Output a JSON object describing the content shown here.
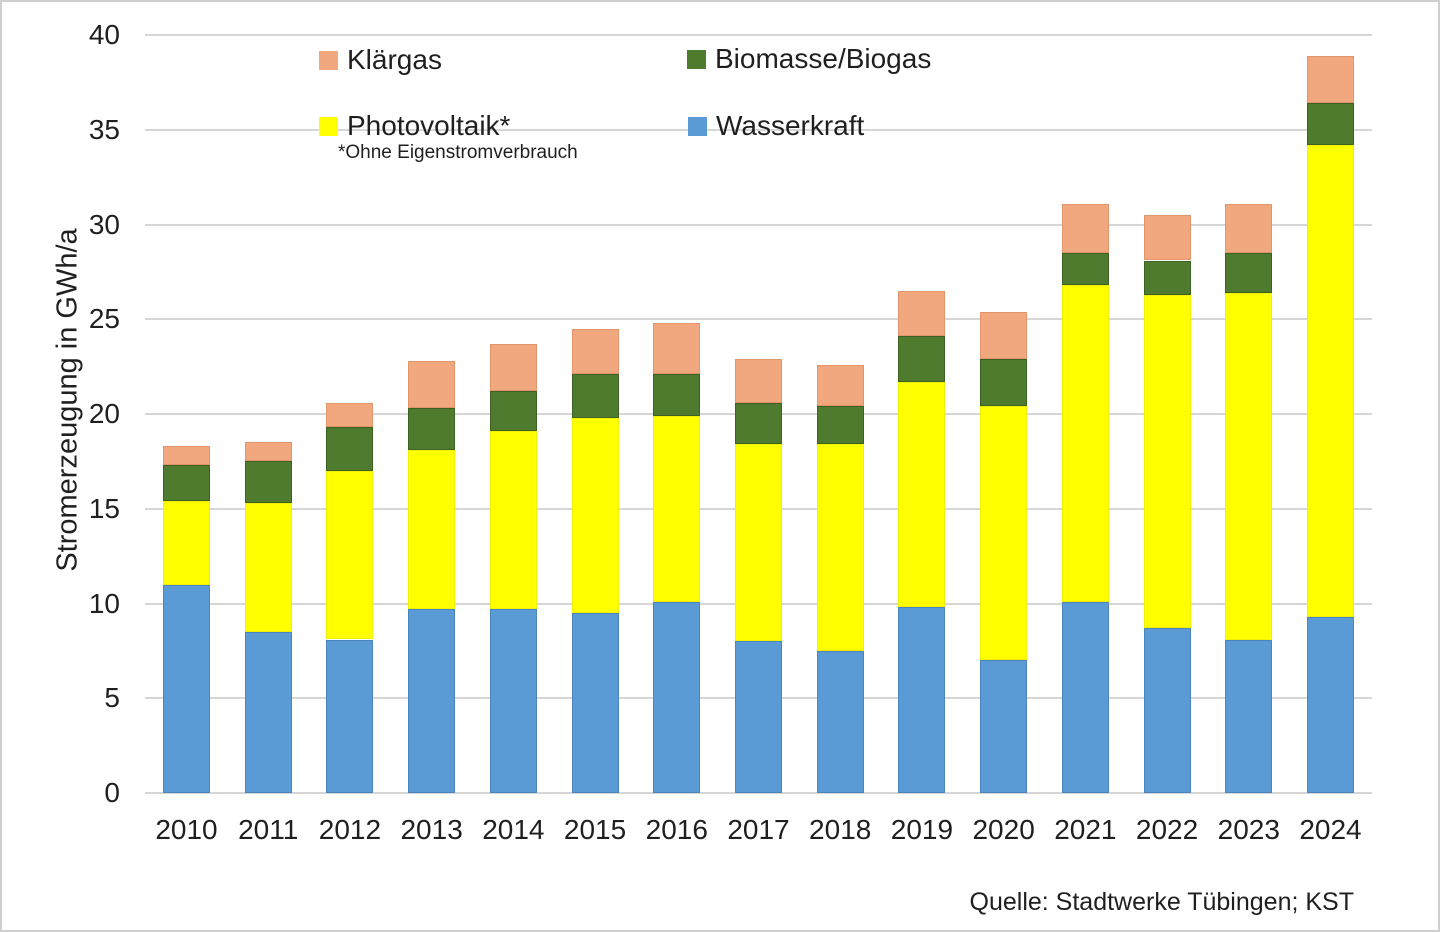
{
  "chart_data": {
    "type": "bar",
    "stacked": true,
    "ylabel": "Stromerzeugung in GWh/a",
    "xlabel": "",
    "ylim": [
      0,
      40
    ],
    "yticks": [
      0,
      5,
      10,
      15,
      20,
      25,
      30,
      35,
      40
    ],
    "grid": true,
    "categories": [
      "2010",
      "2011",
      "2012",
      "2013",
      "2014",
      "2015",
      "2016",
      "2017",
      "2018",
      "2019",
      "2020",
      "2021",
      "2022",
      "2023",
      "2024"
    ],
    "series": [
      {
        "name": "Wasserkraft",
        "color": "#5B9BD5",
        "border": "#4a85be",
        "values": [
          11.0,
          8.5,
          8.1,
          9.7,
          9.7,
          9.5,
          10.1,
          8.0,
          7.5,
          9.8,
          7.0,
          10.1,
          8.7,
          8.1,
          9.3
        ]
      },
      {
        "name": "Photovoltaik*",
        "color": "#FFFF00",
        "border": "#f0f000",
        "values": [
          4.4,
          6.8,
          8.9,
          8.4,
          9.4,
          10.3,
          9.8,
          10.4,
          10.9,
          11.9,
          13.4,
          16.7,
          17.6,
          18.3,
          24.9
        ]
      },
      {
        "name": "Biomasse/Biogas",
        "color": "#4E7B2E",
        "border": "#3c6122",
        "values": [
          1.9,
          2.2,
          2.3,
          2.2,
          2.1,
          2.3,
          2.2,
          2.2,
          2.0,
          2.4,
          2.5,
          1.7,
          1.8,
          2.1,
          2.2
        ]
      },
      {
        "name": "Klärgas",
        "color": "#F2A87E",
        "border": "#e2946a",
        "values": [
          1.0,
          1.0,
          1.3,
          2.5,
          2.5,
          2.4,
          2.7,
          2.3,
          2.2,
          2.4,
          2.5,
          2.6,
          2.4,
          2.6,
          2.5
        ]
      }
    ],
    "legend": {
      "position": "top-inside",
      "order": [
        "Klärgas",
        "Biomasse/Biogas",
        "Photovoltaik*",
        "Wasserkraft"
      ],
      "footnote": "*Ohne Eigenstromverbrauch"
    }
  },
  "source": "Quelle: Stadtwerke Tübingen; KST"
}
